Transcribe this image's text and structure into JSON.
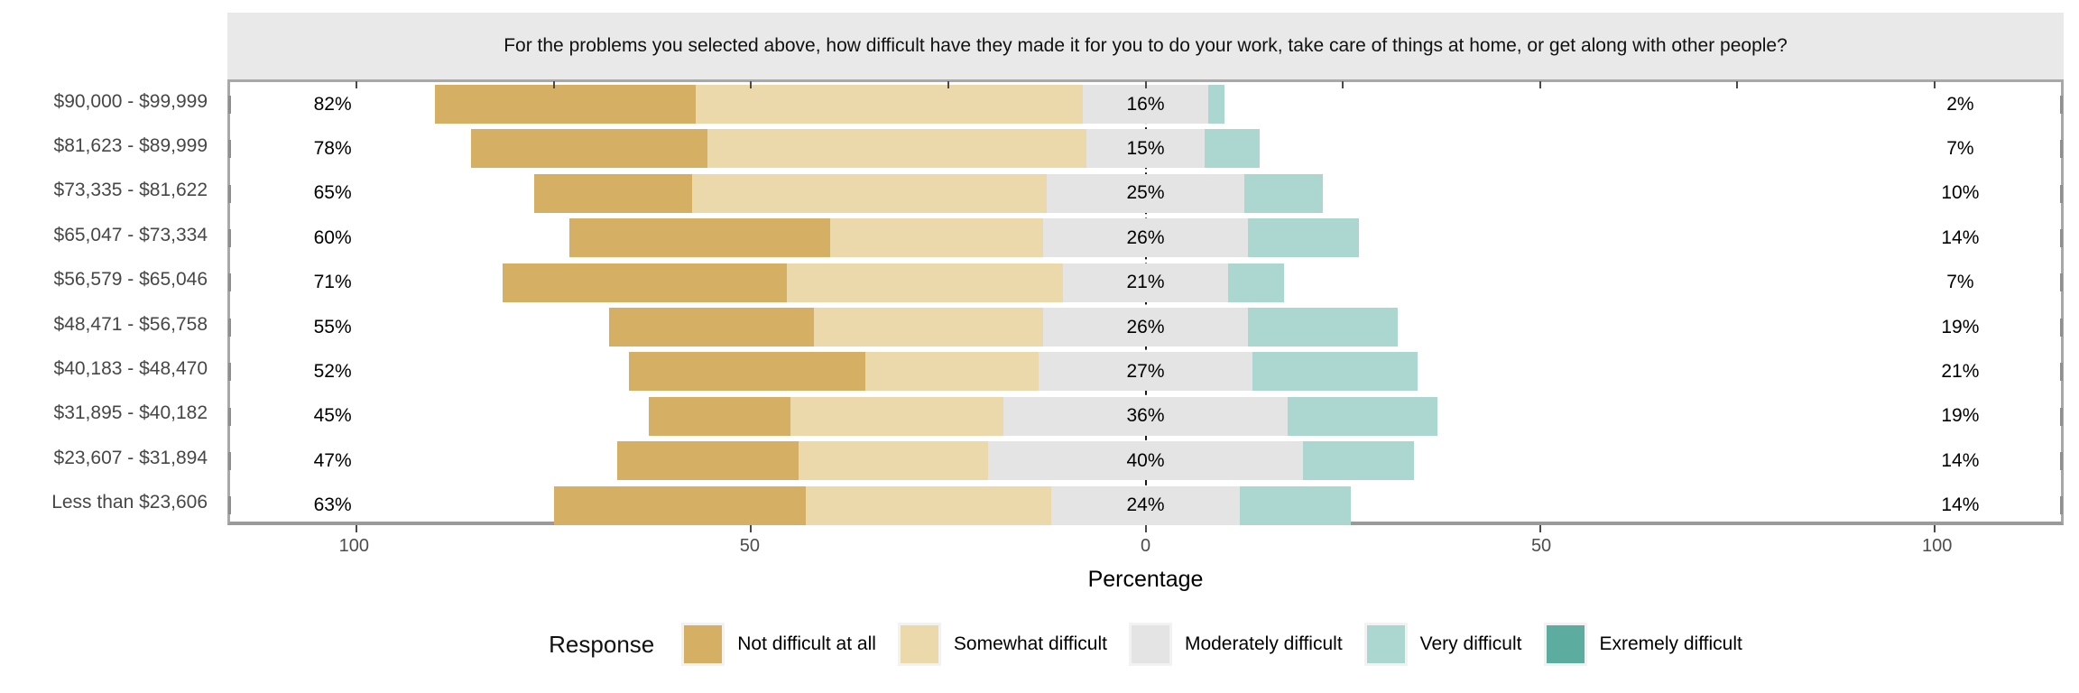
{
  "chart_data": {
    "type": "bar",
    "variant": "diverging-stacked-likert",
    "title": "For the problems you selected above, how difficult have they made it for you to do your work, take care of things at home, or get along with other people?",
    "xlabel": "Percentage",
    "x_range": [
      -116,
      116
    ],
    "x_ticks": [
      {
        "value": -100,
        "label": "100"
      },
      {
        "value": -50,
        "label": "50"
      },
      {
        "value": 0,
        "label": "0"
      },
      {
        "value": 50,
        "label": "50"
      },
      {
        "value": 100,
        "label": "100"
      }
    ],
    "minor_tick_step": 25,
    "grid": false,
    "legend_position": "bottom",
    "legend_title": "Response",
    "series": [
      {
        "name": "Not difficult at all",
        "color": "#D5AF63"
      },
      {
        "name": "Somewhat difficult",
        "color": "#EBD9AB"
      },
      {
        "name": "Moderately difficult",
        "color": "#E4E4E4"
      },
      {
        "name": "Very difficult",
        "color": "#ABD7D0"
      },
      {
        "name": "Exremely difficult",
        "color": "#5CACA0"
      }
    ],
    "rows": [
      {
        "category": "$90,000 - $99,999",
        "values": [
          33,
          49,
          16,
          2,
          0
        ],
        "left_label": "82%",
        "center_label": "16%",
        "right_label": "2%"
      },
      {
        "category": "$81,623 - $89,999",
        "values": [
          30,
          48,
          15,
          7,
          0
        ],
        "left_label": "78%",
        "center_label": "15%",
        "right_label": "7%"
      },
      {
        "category": "$73,335 - $81,622",
        "values": [
          20,
          45,
          25,
          10,
          0
        ],
        "left_label": "65%",
        "center_label": "25%",
        "right_label": "10%"
      },
      {
        "category": "$65,047 - $73,334",
        "values": [
          33,
          27,
          26,
          14,
          0
        ],
        "left_label": "60%",
        "center_label": "26%",
        "right_label": "14%"
      },
      {
        "category": "$56,579 - $65,046",
        "values": [
          36,
          35,
          21,
          7,
          0
        ],
        "left_label": "71%",
        "center_label": "21%",
        "right_label": "7%"
      },
      {
        "category": "$48,471 - $56,758",
        "values": [
          26,
          29,
          26,
          19,
          0
        ],
        "left_label": "55%",
        "center_label": "26%",
        "right_label": "19%"
      },
      {
        "category": "$40,183 - $48,470",
        "values": [
          30,
          22,
          27,
          21,
          0
        ],
        "left_label": "52%",
        "center_label": "27%",
        "right_label": "21%"
      },
      {
        "category": "$31,895 - $40,182",
        "values": [
          18,
          27,
          36,
          19,
          0
        ],
        "left_label": "45%",
        "center_label": "36%",
        "right_label": "19%"
      },
      {
        "category": "$23,607 - $31,894",
        "values": [
          23,
          24,
          40,
          14,
          0
        ],
        "left_label": "47%",
        "center_label": "40%",
        "right_label": "14%"
      },
      {
        "category": "Less than $23,606",
        "values": [
          32,
          31,
          24,
          14,
          0
        ],
        "left_label": "63%",
        "center_label": "24%",
        "right_label": "14%"
      }
    ]
  }
}
